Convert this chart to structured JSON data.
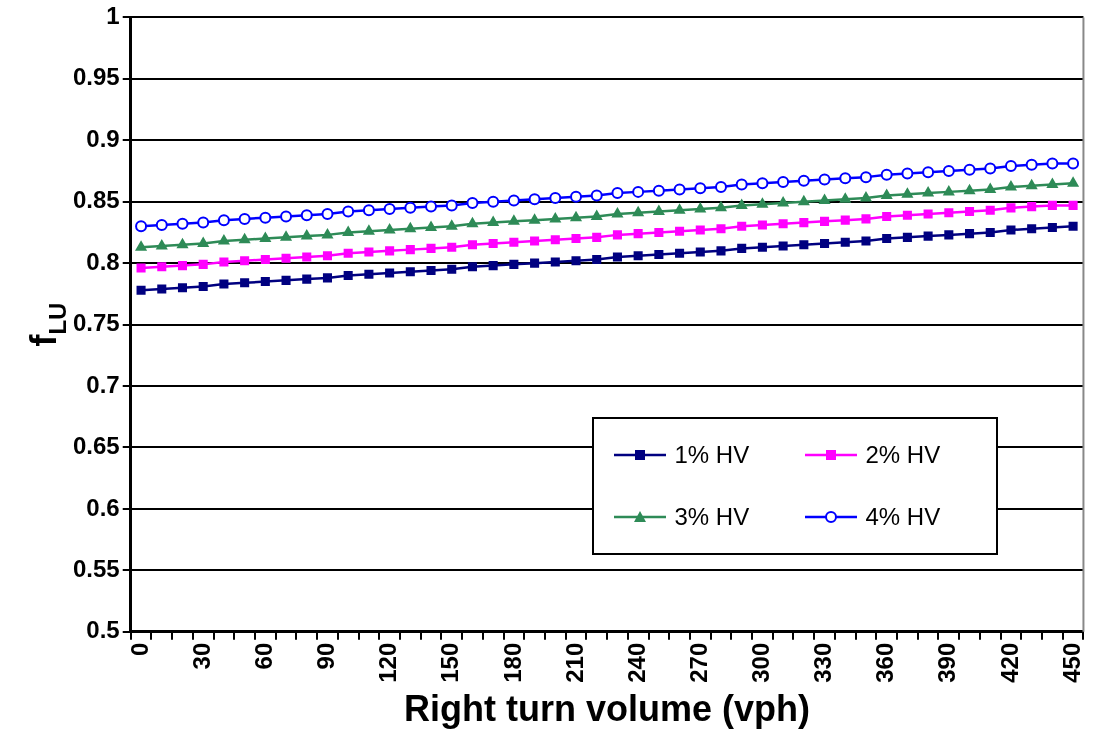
{
  "chart_data": {
    "type": "line",
    "xlabel": "Right turn volume (vph)",
    "ylabel": "f$_{LU}$",
    "categories": [
      "0",
      null,
      null,
      "30",
      null,
      null,
      "60",
      null,
      null,
      "90",
      null,
      null,
      "120",
      null,
      null,
      "150",
      null,
      null,
      "180",
      null,
      null,
      "210",
      null,
      null,
      "240",
      null,
      null,
      "270",
      null,
      null,
      "300",
      null,
      null,
      "330",
      null,
      null,
      "360",
      null,
      null,
      "390",
      null,
      null,
      "420",
      null,
      null,
      "450"
    ],
    "series": [
      {
        "name": "1% HV",
        "color": "#000080",
        "marker": "square",
        "values": [
          0.778,
          0.779,
          0.78,
          0.781,
          0.783,
          0.784,
          0.785,
          0.786,
          0.787,
          0.788,
          0.79,
          0.791,
          0.792,
          0.793,
          0.794,
          0.795,
          0.797,
          0.798,
          0.799,
          0.8,
          0.801,
          0.802,
          0.803,
          0.805,
          0.806,
          0.807,
          0.808,
          0.809,
          0.81,
          0.812,
          0.813,
          0.814,
          0.815,
          0.816,
          0.817,
          0.818,
          0.82,
          0.821,
          0.822,
          0.823,
          0.824,
          0.825,
          0.827,
          0.828,
          0.829,
          0.83
        ]
      },
      {
        "name": "2% HV",
        "color": "#ff00ff",
        "marker": "square",
        "values": [
          0.796,
          0.797,
          0.798,
          0.799,
          0.801,
          0.802,
          0.803,
          0.804,
          0.805,
          0.806,
          0.808,
          0.809,
          0.81,
          0.811,
          0.812,
          0.813,
          0.815,
          0.816,
          0.817,
          0.818,
          0.819,
          0.82,
          0.821,
          0.823,
          0.824,
          0.825,
          0.826,
          0.827,
          0.828,
          0.83,
          0.831,
          0.832,
          0.833,
          0.834,
          0.835,
          0.836,
          0.838,
          0.839,
          0.84,
          0.841,
          0.842,
          0.843,
          0.845,
          0.846,
          0.847,
          0.847
        ]
      },
      {
        "name": "3% HV",
        "color": "#2e8b57",
        "marker": "triangle",
        "values": [
          0.813,
          0.814,
          0.815,
          0.816,
          0.818,
          0.819,
          0.82,
          0.821,
          0.822,
          0.823,
          0.825,
          0.826,
          0.827,
          0.828,
          0.829,
          0.83,
          0.832,
          0.833,
          0.834,
          0.835,
          0.836,
          0.837,
          0.838,
          0.84,
          0.841,
          0.842,
          0.843,
          0.844,
          0.845,
          0.847,
          0.848,
          0.849,
          0.85,
          0.851,
          0.852,
          0.853,
          0.855,
          0.856,
          0.857,
          0.858,
          0.859,
          0.86,
          0.862,
          0.863,
          0.864,
          0.865
        ]
      },
      {
        "name": "4% HV",
        "color": "#0000ff",
        "marker": "circle",
        "values": [
          0.83,
          0.831,
          0.832,
          0.833,
          0.835,
          0.836,
          0.837,
          0.838,
          0.839,
          0.84,
          0.842,
          0.843,
          0.844,
          0.845,
          0.846,
          0.847,
          0.849,
          0.85,
          0.851,
          0.852,
          0.853,
          0.854,
          0.855,
          0.857,
          0.858,
          0.859,
          0.86,
          0.861,
          0.862,
          0.864,
          0.865,
          0.866,
          0.867,
          0.868,
          0.869,
          0.87,
          0.872,
          0.873,
          0.874,
          0.875,
          0.876,
          0.877,
          0.879,
          0.88,
          0.881,
          0.881
        ]
      }
    ],
    "ylim": [
      0.5,
      1
    ],
    "yticks": [
      0.5,
      0.55,
      0.6,
      0.65,
      0.7,
      0.75,
      0.8,
      0.85,
      0.9,
      0.95,
      1
    ],
    "grid": "y",
    "legend": "bottom right"
  }
}
